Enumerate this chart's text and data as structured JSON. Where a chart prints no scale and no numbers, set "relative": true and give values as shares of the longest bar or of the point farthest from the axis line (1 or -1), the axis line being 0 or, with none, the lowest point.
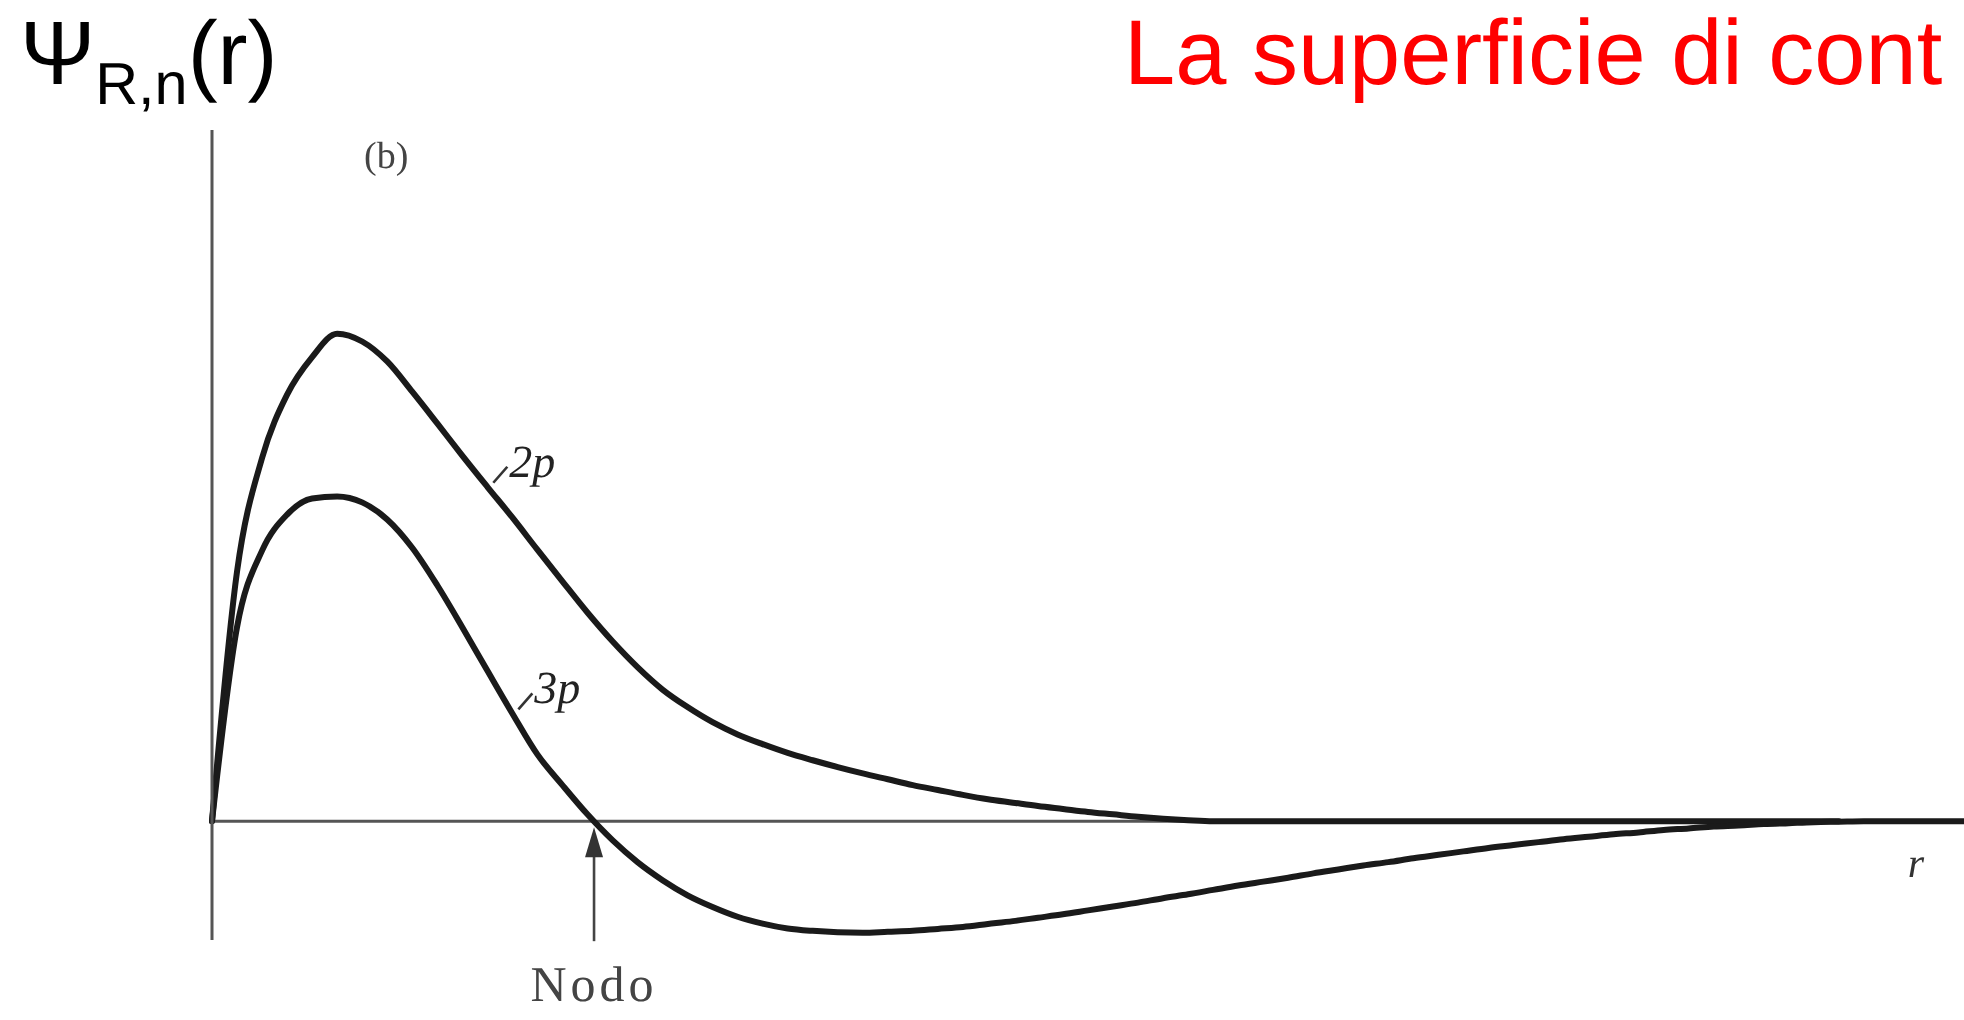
{
  "chart_data": {
    "type": "line",
    "title": "La superficie di cont",
    "ylabel": "Ψ$_{R,n}$(r)",
    "xlabel": "r",
    "relative": true,
    "categories": [
      null,
      null,
      null,
      null,
      null,
      null,
      null,
      null,
      null,
      null,
      null,
      null,
      null,
      null,
      null,
      null,
      null,
      null,
      null,
      null,
      null,
      null,
      null,
      null,
      null,
      null,
      null,
      null,
      null,
      null,
      null,
      null,
      null,
      null,
      null,
      null,
      null,
      null,
      null,
      null,
      null,
      null,
      null,
      null,
      null,
      null,
      null,
      null,
      null,
      null,
      null,
      null,
      null,
      null,
      null,
      null,
      null,
      null,
      null,
      null,
      null,
      null,
      null,
      null,
      null,
      null,
      null,
      null,
      null,
      null,
      null
    ],
    "series": [
      {
        "name": "2p",
        "color": "#1a1a1a",
        "values": [
          0,
          0.512,
          0.745,
          0.875,
          0.952,
          1,
          0.984,
          0.943,
          0.881,
          0.816,
          0.75,
          0.686,
          0.623,
          0.557,
          0.492,
          0.428,
          0.369,
          0.316,
          0.27,
          0.234,
          0.203,
          0.178,
          0.158,
          0.14,
          0.125,
          0.111,
          0.098,
          0.086,
          0.074,
          0.064,
          0.054,
          0.045,
          0.038,
          0.031,
          0.025,
          0.019,
          0.014,
          0.009,
          0.005,
          0.002,
          0,
          0,
          0,
          0,
          0,
          0,
          0,
          0,
          0,
          0,
          0,
          0,
          0,
          0,
          0,
          0,
          0,
          0,
          0,
          0,
          0,
          0,
          0,
          0,
          0,
          0,
          null,
          null,
          null,
          null,
          null
        ]
      },
      {
        "name": "3p",
        "color": "#1a1a1a",
        "values": [
          0,
          0.398,
          0.555,
          0.629,
          0.662,
          0.666,
          0.654,
          0.619,
          0.561,
          0.484,
          0.398,
          0.309,
          0.221,
          0.137,
          0.074,
          0.014,
          -0.039,
          -0.084,
          -0.121,
          -0.152,
          -0.176,
          -0.196,
          -0.21,
          -0.22,
          -0.225,
          -0.228,
          -0.229,
          -0.227,
          -0.225,
          -0.221,
          -0.217,
          -0.211,
          -0.205,
          -0.198,
          -0.191,
          -0.183,
          -0.175,
          -0.167,
          -0.158,
          -0.15,
          -0.141,
          -0.132,
          -0.124,
          -0.116,
          -0.107,
          -0.099,
          -0.091,
          -0.084,
          -0.076,
          -0.069,
          -0.062,
          -0.055,
          -0.049,
          -0.043,
          -0.037,
          -0.032,
          -0.027,
          -0.023,
          -0.018,
          -0.015,
          -0.011,
          -0.009,
          -0.006,
          -0.004,
          -0.002,
          -0.001,
          0,
          0,
          0,
          0,
          0
        ]
      }
    ],
    "annotations": [
      "(b)",
      "Nodo"
    ]
  }
}
